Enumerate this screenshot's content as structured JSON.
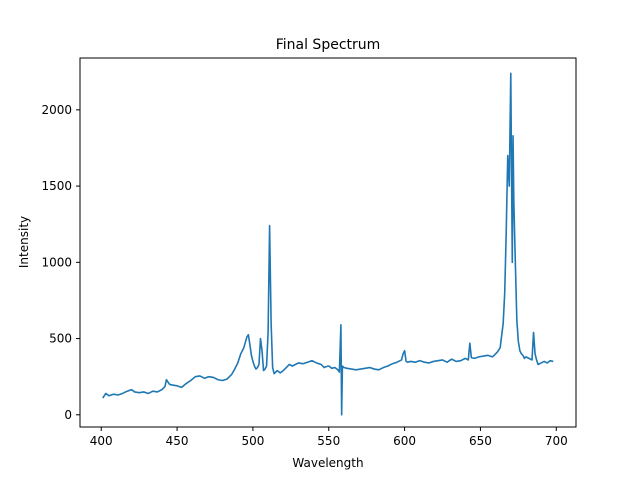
{
  "chart_data": {
    "type": "line",
    "title": "Final Spectrum",
    "xlabel": "Wavelength",
    "ylabel": "Intensity",
    "xlim": [
      386,
      713
    ],
    "ylim": [
      -80,
      2340
    ],
    "xticks": [
      400,
      450,
      500,
      550,
      600,
      650,
      700
    ],
    "yticks": [
      0,
      500,
      1000,
      1500,
      2000
    ],
    "grid": false,
    "series": [
      {
        "color": "#1f77b4",
        "x": [
          401,
          403,
          405,
          408,
          411,
          414,
          416,
          418,
          420,
          422,
          425,
          428,
          431,
          434,
          437,
          440,
          442,
          443,
          445,
          447,
          450,
          453,
          456,
          459,
          462,
          465,
          468,
          471,
          474,
          477,
          480,
          483,
          486,
          488,
          490,
          492,
          494,
          496,
          497,
          498,
          499,
          500,
          501,
          502,
          503,
          504,
          505,
          506,
          507,
          508,
          509,
          510,
          511,
          512,
          513,
          514,
          516,
          518,
          520,
          522,
          524,
          526,
          528,
          530,
          533,
          536,
          539,
          542,
          545,
          547,
          548,
          550,
          552,
          554,
          556,
          557,
          558,
          558.5,
          559,
          560,
          562,
          565,
          568,
          571,
          574,
          577,
          580,
          583,
          586,
          589,
          592,
          595,
          598,
          599,
          600,
          601,
          602,
          604,
          607,
          610,
          613,
          616,
          619,
          622,
          625,
          628,
          631,
          634,
          637,
          640,
          642,
          643,
          644,
          646,
          649,
          652,
          655,
          658,
          661,
          663,
          664,
          665,
          666,
          667,
          668,
          669,
          670,
          670.5,
          671,
          671.5,
          672,
          673,
          674,
          675,
          676,
          677,
          678,
          679,
          680,
          682,
          684,
          685,
          686,
          687,
          688,
          690,
          692,
          694,
          696,
          698
        ],
        "y": [
          110,
          140,
          125,
          135,
          130,
          140,
          150,
          158,
          165,
          150,
          145,
          150,
          140,
          155,
          150,
          165,
          185,
          230,
          200,
          195,
          190,
          180,
          205,
          225,
          250,
          255,
          240,
          250,
          245,
          230,
          225,
          235,
          265,
          300,
          340,
          400,
          440,
          510,
          525,
          460,
          390,
          350,
          320,
          300,
          310,
          330,
          500,
          420,
          290,
          300,
          320,
          540,
          1240,
          600,
          310,
          270,
          290,
          275,
          290,
          310,
          330,
          320,
          330,
          340,
          335,
          345,
          355,
          340,
          330,
          310,
          315,
          320,
          305,
          310,
          295,
          280,
          590,
          0,
          320,
          310,
          305,
          300,
          295,
          300,
          305,
          310,
          300,
          295,
          310,
          320,
          335,
          345,
          360,
          400,
          420,
          350,
          345,
          350,
          345,
          355,
          345,
          340,
          350,
          355,
          360,
          345,
          365,
          350,
          355,
          370,
          360,
          470,
          375,
          370,
          380,
          385,
          390,
          380,
          410,
          440,
          520,
          600,
          800,
          1200,
          1700,
          1500,
          2240,
          1600,
          1000,
          1830,
          1400,
          1000,
          620,
          480,
          420,
          400,
          390,
          370,
          380,
          370,
          360,
          540,
          400,
          360,
          330,
          340,
          350,
          340,
          355,
          350
        ]
      }
    ]
  }
}
